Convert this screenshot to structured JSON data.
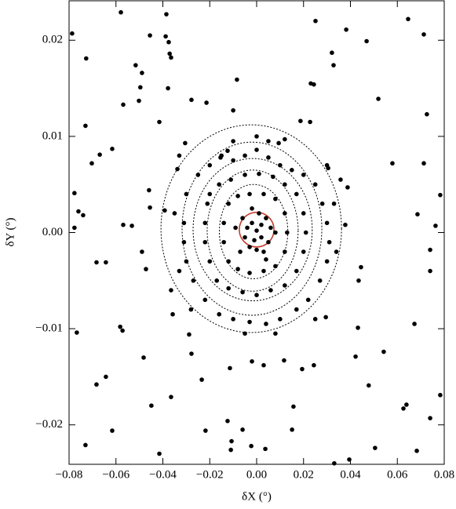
{
  "chart_data": {
    "type": "scatter",
    "xlabel": "δX (°)",
    "ylabel": "δY (°)",
    "xlim": [
      -0.08,
      0.08
    ],
    "ylim": [
      -0.0241,
      0.0241
    ],
    "xticks": [
      {
        "value": -0.08,
        "label": "−0.08"
      },
      {
        "value": -0.06,
        "label": "−0.06"
      },
      {
        "value": -0.04,
        "label": "−0.04"
      },
      {
        "value": -0.02,
        "label": "−0.02"
      },
      {
        "value": 0,
        "label": "0.00"
      },
      0.02,
      0.04,
      0.06,
      0.08
    ],
    "yticks": [
      {
        "value": -0.02,
        "label": "−0.02"
      },
      {
        "value": -0.01,
        "label": "−0.01"
      },
      {
        "value": 0,
        "label": "0.00"
      },
      0.01,
      0.02
    ],
    "series": [
      {
        "color": "#000000",
        "x": [
          -0.0787,
          -0.0579,
          -0.0385,
          -0.0455,
          -0.0388,
          -0.0375,
          -0.0371,
          -0.0365,
          -0.0727,
          -0.0516,
          -0.0489,
          -0.0496,
          -0.0378,
          -0.0502,
          -0.0569,
          -0.0278,
          -0.0214,
          -0.0084,
          -0.01,
          0.0231,
          0.0244,
          0.0251,
          0.0321,
          0.0328,
          0.0382,
          0.0469,
          0.0646,
          0.0713,
          0.0726,
          0.0519,
          -0.073,
          -0.0415,
          -0.0703,
          -0.0669,
          -0.0616,
          -0.0777,
          -0.076,
          -0.074,
          -0.0777,
          -0.0569,
          -0.0532,
          -0.0489,
          -0.0472,
          -0.0683,
          -0.0643,
          -0.0767,
          -0.0582,
          -0.0572,
          -0.0482,
          -0.0683,
          -0.0643,
          -0.0449,
          -0.0616,
          -0.073,
          -0.0415,
          -0.0365,
          -0.0218,
          -0.0124,
          -0.0107,
          -0.011,
          -0.0023,
          0.0037,
          -0.006,
          0.0157,
          0.0151,
          0.0331,
          0.0395,
          0.0505,
          0.0478,
          0.0626,
          0.0639,
          0.0683,
          0.074,
          0.0783,
          0.0422,
          0.0542,
          0.0673,
          0.074,
          0.074,
          0.0686,
          0.0763,
          0.0579,
          0.0713,
          0.0783,
          0.0445,
          0.0435,
          0.0432,
          0.0295,
          0.0244,
          0.0194,
          0.0117,
          0.003,
          -0.002,
          -0.0114,
          -0.0234,
          -0.0288,
          -0.0278,
          -0.0358,
          -0.0365,
          -0.0459,
          -0.0455,
          -0.0392,
          -0.0338,
          -0.0305,
          0.0187,
          0.0228,
          0.0305,
          0.0358,
          0.0378,
          0.0388,
          0.0094,
          0.012,
          0,
          -0.0154,
          -0.0124,
          -0.03,
          -0.025,
          -0.02,
          -0.015,
          -0.01,
          -0.005,
          0.005,
          0.01,
          0.015,
          0.02,
          0.025,
          0.028,
          0.03,
          0.031,
          0.03,
          0.027,
          0.022,
          0.017,
          0.01,
          0.004,
          -0.003,
          -0.01,
          -0.016,
          -0.022,
          -0.027,
          -0.03,
          -0.031,
          -0.031,
          -0.02,
          -0.016,
          -0.011,
          -0.005,
          0.001,
          0.007,
          0.012,
          0.017,
          0.02,
          0.021,
          0.02,
          0.017,
          0.012,
          0.006,
          0,
          -0.006,
          -0.012,
          -0.017,
          -0.02,
          -0.022,
          -0.022,
          -0.021,
          -0.012,
          -0.008,
          -0.003,
          0.003,
          0.008,
          0.012,
          0.013,
          0.012,
          0.008,
          0.003,
          -0.003,
          -0.008,
          -0.012,
          -0.014,
          -0.014,
          -0.006,
          -0.004,
          -0.002,
          0,
          0.002,
          0.004,
          0.006,
          0.005,
          0.002,
          -0.001,
          -0.003,
          -0.005,
          0,
          0.003,
          -0.007,
          0.008,
          -0.009,
          0.001,
          -0.002,
          0.004,
          -0.035,
          -0.033,
          0.034,
          0.033,
          0,
          0.005,
          -0.01,
          0.008,
          -0.005,
          0.025,
          -0.028,
          0.03,
          -0.033
        ],
        "y": [
          0.0207,
          0.0229,
          0.0227,
          0.0205,
          0.0204,
          0.0198,
          0.0186,
          0.0182,
          0.0181,
          0.0174,
          0.0166,
          0.0151,
          0.015,
          0.0137,
          0.0133,
          0.0138,
          0.0135,
          0.0159,
          0.0127,
          0.0155,
          0.0154,
          0.022,
          0.0187,
          0.0174,
          0.0211,
          0.0199,
          0.0222,
          0.0206,
          0.0123,
          0.0139,
          0.0111,
          0.0115,
          0.0072,
          0.0081,
          0.0087,
          0.0041,
          0.0022,
          0.0018,
          0.0005,
          0.0008,
          0.0007,
          -0.002,
          -0.0038,
          -0.0031,
          -0.0031,
          -0.0104,
          -0.0098,
          -0.0102,
          -0.013,
          -0.0158,
          -0.015,
          -0.018,
          -0.0206,
          -0.0221,
          -0.023,
          -0.0171,
          -0.0206,
          -0.0196,
          -0.0217,
          -0.0226,
          -0.0222,
          -0.0225,
          -0.0205,
          -0.0181,
          -0.0205,
          -0.024,
          -0.0236,
          -0.0224,
          -0.0159,
          -0.0183,
          -0.0179,
          -0.0227,
          -0.0193,
          -0.0169,
          -0.0129,
          -0.0124,
          -0.0095,
          -0.004,
          -0.0018,
          0.0019,
          0.0007,
          0.0072,
          0.0072,
          0.0039,
          -0.0036,
          -0.005,
          -0.0099,
          -0.0088,
          -0.0138,
          -0.0142,
          -0.0133,
          -0.0138,
          -0.0134,
          -0.0141,
          -0.0153,
          -0.0106,
          -0.0126,
          -0.0085,
          -0.006,
          0.0044,
          0.0026,
          0.0023,
          0.0066,
          0.0093,
          0.0116,
          0.0115,
          0.0067,
          0.0055,
          0.0008,
          0.0047,
          0.0093,
          0.0097,
          0.0086,
          0.0078,
          0.0085,
          0.004,
          0.006,
          0.007,
          0.008,
          0.0075,
          0.008,
          0.0078,
          0.007,
          0.0065,
          0.006,
          0.005,
          0.003,
          0.001,
          -0.001,
          -0.003,
          -0.005,
          -0.007,
          -0.008,
          -0.009,
          -0.0095,
          -0.0093,
          -0.009,
          -0.0085,
          -0.007,
          -0.005,
          -0.003,
          -0.001,
          0.001,
          0.004,
          0.005,
          0.0055,
          0.006,
          0.0061,
          0.0058,
          0.005,
          0.004,
          0.002,
          0,
          -0.002,
          -0.004,
          -0.0055,
          -0.006,
          -0.0065,
          -0.0062,
          -0.0058,
          -0.005,
          -0.003,
          -0.001,
          0.001,
          0.003,
          0.003,
          0.0038,
          0.004,
          0.004,
          0.0035,
          0.002,
          0,
          -0.002,
          -0.0035,
          -0.004,
          -0.0042,
          -0.0038,
          -0.003,
          -0.001,
          0.001,
          0.0015,
          0.0005,
          0.001,
          0.0002,
          0.0008,
          0.0015,
          0.0005,
          -0.001,
          -0.0005,
          -0.0008,
          -0.0015,
          -0.0005,
          -0.0018,
          -0.002,
          -0.002,
          0,
          0.0005,
          0.002,
          0.0025,
          -0.0028,
          0.002,
          -0.004,
          -0.002,
          0.003,
          0.01,
          0.0095,
          0.0095,
          -0.0105,
          -0.0105,
          -0.009,
          -0.008,
          0.007,
          0.008
        ]
      }
    ],
    "contours": [
      {
        "color": "#000000",
        "style": "dotted",
        "cx": -0.0023,
        "cy": 0.0004,
        "rx": 0.0385,
        "ry": 0.0108
      },
      {
        "color": "#000000",
        "style": "dotted",
        "cx": -0.002,
        "cy": 0.0004,
        "rx": 0.0298,
        "ry": 0.009
      },
      {
        "color": "#000000",
        "style": "dotted",
        "cx": -0.0017,
        "cy": 0.0003,
        "rx": 0.0254,
        "ry": 0.0074
      },
      {
        "color": "#000000",
        "style": "dotted",
        "cx": -0.0017,
        "cy": 0.0002,
        "rx": 0.0194,
        "ry": 0.0063
      },
      {
        "color": "#000000",
        "style": "dotted",
        "cx": -0.0013,
        "cy": 0.0001,
        "rx": 0.0146,
        "ry": 0.0049
      },
      {
        "color": "#c0392b",
        "style": "solid",
        "cx": 0,
        "cy": 0.0003,
        "rx": 0.0074,
        "ry": 0.0018
      }
    ]
  }
}
